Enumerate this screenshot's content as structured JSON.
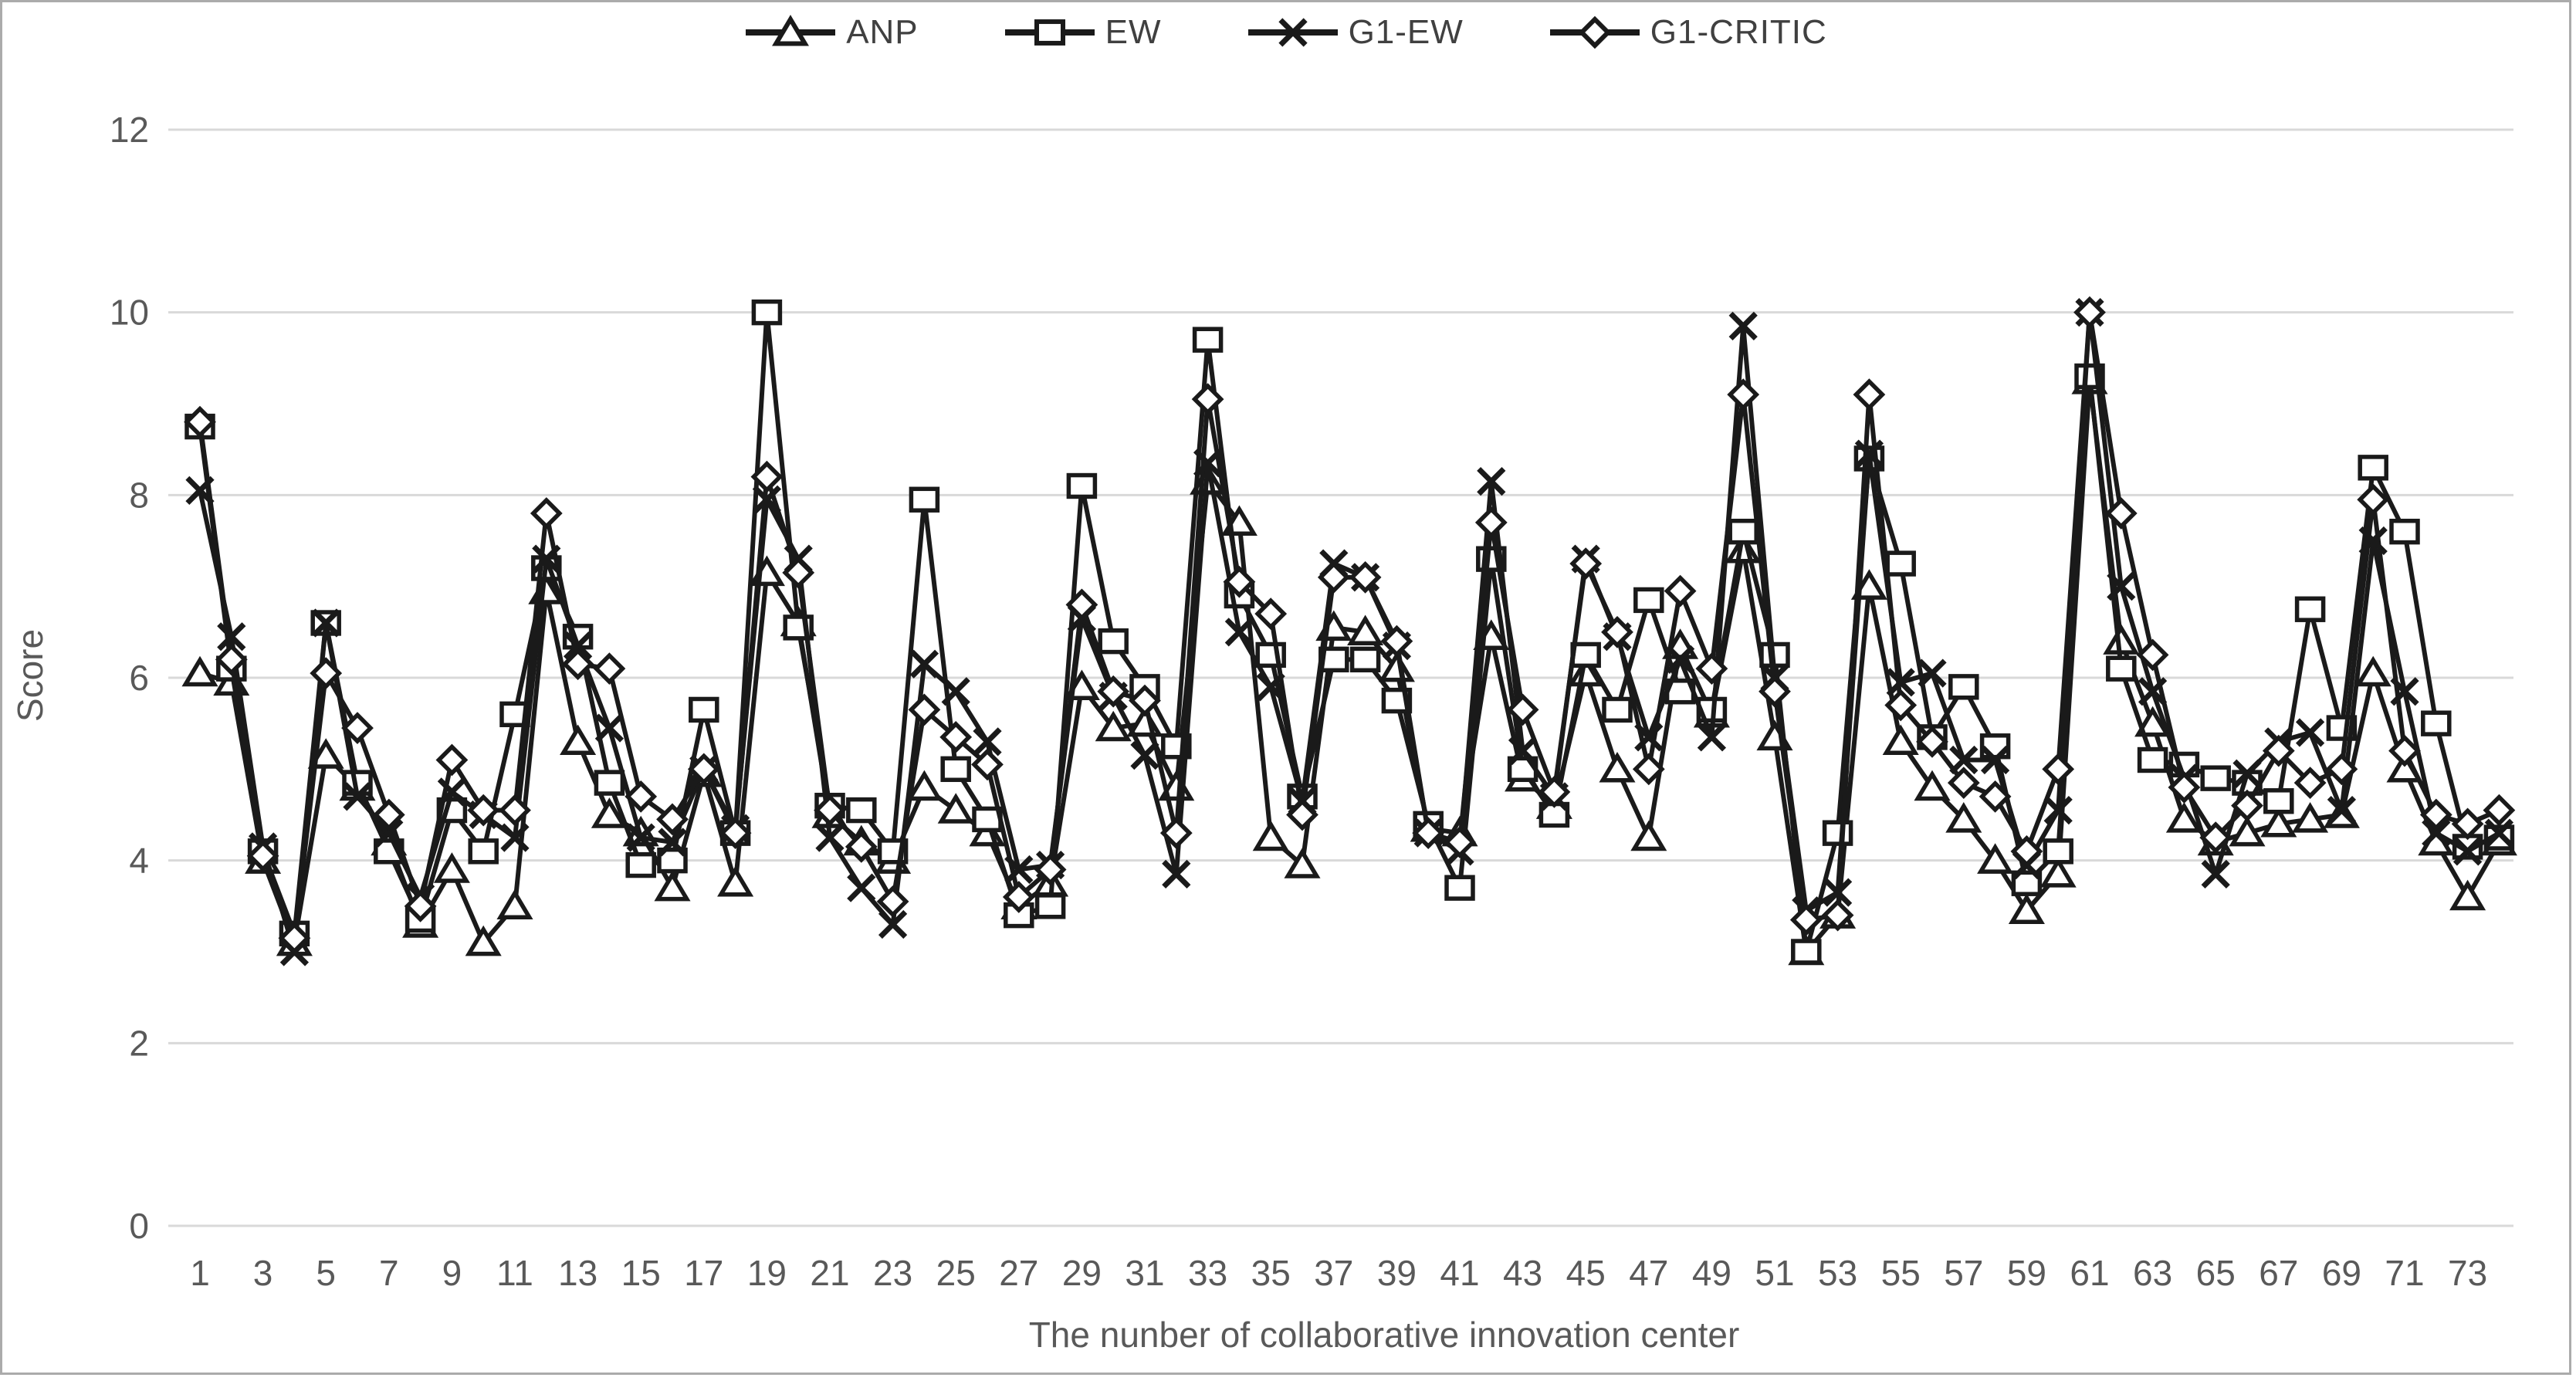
{
  "figure": {
    "ylabel": "Score",
    "xlabel": "The nunber of collaborative innovation center",
    "colors": {
      "series": "#1a1a1a",
      "gridline": "#d9d9d9",
      "tick_text": "#595959",
      "legend_text": "#404040",
      "border": "#ababab",
      "marker_fill": "#ffffff"
    }
  },
  "legend": [
    {
      "id": "anp",
      "label": "ANP",
      "marker": "triangle"
    },
    {
      "id": "ew",
      "label": "EW",
      "marker": "square"
    },
    {
      "id": "g1-ew",
      "label": "G1-EW",
      "marker": "x"
    },
    {
      "id": "g1-critic",
      "label": "G1-CRITIC",
      "marker": "diamond"
    }
  ],
  "chart_data": {
    "type": "line",
    "title": "",
    "xlabel": "The nunber of collaborative innovation center",
    "ylabel": "Score",
    "ylim": [
      0,
      12
    ],
    "ytick_step": 2,
    "n_points": 74,
    "x_tick_labels": [
      1,
      3,
      5,
      7,
      9,
      11,
      13,
      15,
      17,
      19,
      21,
      23,
      25,
      27,
      29,
      31,
      33,
      35,
      37,
      39,
      41,
      43,
      45,
      47,
      49,
      51,
      53,
      55,
      57,
      59,
      61,
      63,
      65,
      67,
      69,
      71,
      73
    ],
    "grid": true,
    "legend_position": "top",
    "series": [
      {
        "name": "ANP",
        "marker": "triangle",
        "values": [
          6.05,
          5.95,
          4.0,
          3.1,
          5.15,
          4.8,
          4.2,
          3.3,
          3.9,
          3.1,
          3.5,
          6.95,
          5.3,
          4.5,
          4.3,
          3.7,
          4.95,
          3.75,
          7.15,
          6.6,
          4.5,
          4.2,
          4.0,
          4.8,
          4.55,
          4.3,
          3.5,
          3.75,
          5.9,
          5.45,
          5.5,
          4.8,
          8.15,
          7.7,
          4.25,
          3.95,
          6.55,
          6.5,
          6.1,
          4.35,
          4.3,
          6.45,
          4.9,
          4.6,
          6.05,
          5.0,
          4.25,
          6.35,
          5.6,
          7.4,
          5.35,
          3.0,
          3.4,
          7.0,
          5.3,
          4.8,
          4.45,
          4.0,
          3.45,
          3.85,
          9.25,
          6.4,
          5.5,
          4.45,
          4.2,
          4.3,
          4.4,
          4.45,
          4.5,
          6.05,
          5.0,
          4.2,
          3.6,
          4.2
        ]
      },
      {
        "name": "EW",
        "marker": "square",
        "values": [
          8.75,
          6.1,
          4.1,
          3.2,
          6.6,
          4.85,
          4.1,
          3.35,
          4.55,
          4.1,
          5.6,
          7.2,
          6.45,
          4.85,
          3.95,
          4.0,
          5.65,
          4.3,
          10.0,
          6.55,
          4.6,
          4.55,
          4.1,
          7.95,
          5.0,
          4.45,
          3.4,
          3.5,
          8.1,
          6.4,
          5.9,
          5.25,
          9.7,
          6.9,
          6.25,
          4.7,
          6.2,
          6.2,
          5.75,
          4.4,
          3.7,
          7.3,
          5.0,
          4.5,
          6.25,
          5.65,
          6.85,
          5.85,
          5.65,
          7.6,
          6.25,
          3.0,
          4.3,
          8.4,
          7.25,
          5.35,
          5.9,
          5.25,
          3.75,
          4.1,
          9.3,
          6.1,
          5.1,
          5.05,
          4.9,
          4.85,
          4.65,
          6.75,
          5.45,
          8.3,
          7.6,
          5.5,
          4.15,
          4.25
        ]
      },
      {
        "name": "G1-EW",
        "marker": "x",
        "values": [
          8.05,
          6.45,
          4.15,
          3.0,
          6.6,
          4.7,
          4.3,
          3.6,
          4.75,
          4.5,
          4.25,
          7.3,
          6.35,
          5.45,
          4.25,
          4.2,
          5.0,
          4.35,
          7.95,
          7.3,
          4.25,
          3.7,
          3.3,
          6.15,
          5.85,
          5.3,
          3.9,
          3.95,
          6.65,
          5.8,
          5.15,
          3.85,
          8.35,
          6.5,
          5.9,
          4.65,
          7.25,
          7.1,
          6.35,
          4.3,
          4.1,
          8.15,
          5.2,
          4.7,
          7.3,
          6.45,
          5.35,
          6.2,
          5.35,
          9.85,
          6.0,
          3.45,
          3.65,
          8.45,
          5.95,
          6.05,
          5.1,
          5.1,
          3.95,
          4.55,
          10.0,
          7.0,
          5.85,
          4.9,
          3.85,
          4.95,
          5.3,
          5.4,
          4.55,
          7.5,
          5.85,
          4.3,
          4.1,
          4.3
        ]
      },
      {
        "name": "G1-CRITIC",
        "marker": "diamond",
        "values": [
          8.8,
          6.2,
          4.05,
          3.15,
          6.05,
          5.45,
          4.5,
          3.5,
          5.1,
          4.55,
          4.55,
          7.8,
          6.15,
          6.1,
          4.7,
          4.45,
          5.0,
          4.3,
          8.2,
          7.15,
          4.55,
          4.15,
          3.55,
          5.65,
          5.35,
          5.05,
          3.6,
          3.9,
          6.8,
          5.85,
          5.75,
          4.3,
          9.05,
          7.05,
          6.7,
          4.5,
          7.1,
          7.1,
          6.4,
          4.3,
          4.2,
          7.7,
          5.65,
          4.75,
          7.25,
          6.5,
          5.0,
          6.95,
          6.1,
          9.1,
          5.85,
          3.35,
          3.4,
          9.1,
          5.7,
          5.3,
          4.85,
          4.7,
          4.1,
          5.0,
          10.0,
          7.8,
          6.25,
          4.8,
          4.25,
          4.6,
          5.2,
          4.85,
          5.0,
          7.95,
          5.2,
          4.5,
          4.4,
          4.55
        ]
      }
    ]
  }
}
